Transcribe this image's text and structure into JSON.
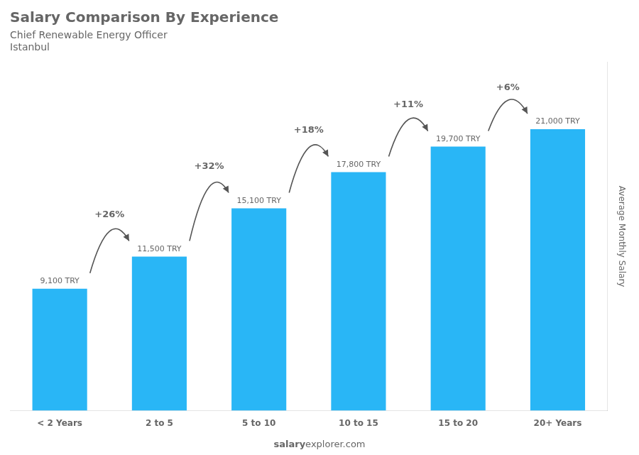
{
  "chart_data": {
    "type": "bar",
    "title": "Salary Comparison By Experience",
    "subtitle": "Chief Renewable Energy Officer",
    "annotations": {
      "city": "Istanbul",
      "changes": [
        "+26%",
        "+32%",
        "+18%",
        "+11%",
        "+6%"
      ],
      "footer": [
        "salary",
        "explorer.com"
      ]
    },
    "categories": [
      "< 2 Years",
      "2 to 5",
      "5 to 10",
      "10 to 15",
      "15 to 20",
      "20+ Years"
    ],
    "values": [
      9100,
      11500,
      15100,
      17800,
      19700,
      21000
    ],
    "value_labels": [
      "9,100 TRY",
      "11,500 TRY",
      "15,100 TRY",
      "17,800 TRY",
      "19,700 TRY",
      "21,000 TRY"
    ],
    "data_labels": true,
    "color": "#29b6f6",
    "ylabel": "Average Monthly Salary",
    "ylim": [
      0,
      26000
    ],
    "tick_labels": "x",
    "grid": false
  }
}
